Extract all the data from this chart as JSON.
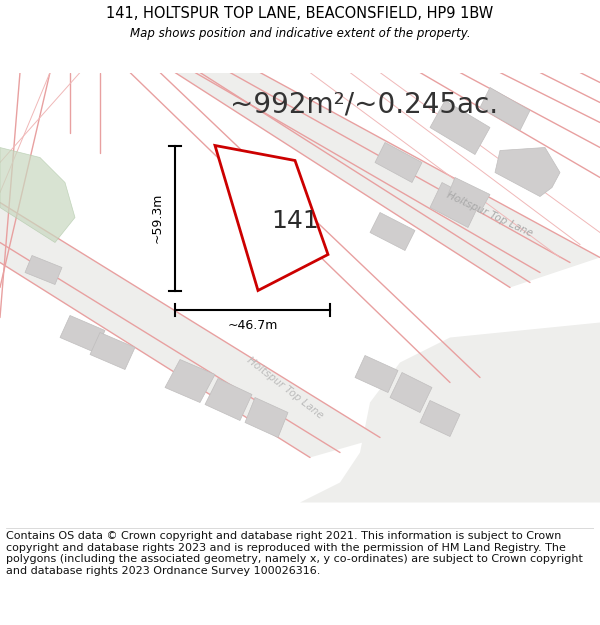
{
  "title_line1": "141, HOLTSPUR TOP LANE, BEACONSFIELD, HP9 1BW",
  "title_line2": "Map shows position and indicative extent of the property.",
  "area_text": "~992m²/~0.245ac.",
  "label_141": "141",
  "dim_width": "~46.7m",
  "dim_height": "~59.3m",
  "road_label_upper": "Holtspur Top Lane",
  "road_label_lower": "Holtspur Top Lane",
  "footer_text": "Contains OS data © Crown copyright and database right 2021. This information is subject to Crown copyright and database rights 2023 and is reproduced with the permission of HM Land Registry. The polygons (including the associated geometry, namely x, y co-ordinates) are subject to Crown copyright and database rights 2023 Ordnance Survey 100026316.",
  "map_bg": "#f7f7f5",
  "block_fill": "#d0cece",
  "block_edge": "#c0bebe",
  "red_poly_color": "#cc0000",
  "pink_line_color": "#e8a0a0",
  "green_fill": "#c8d8c0",
  "title_fontsize": 10.5,
  "area_fontsize": 20,
  "footer_fontsize": 8,
  "label_fontsize": 18,
  "dim_fontsize": 9
}
